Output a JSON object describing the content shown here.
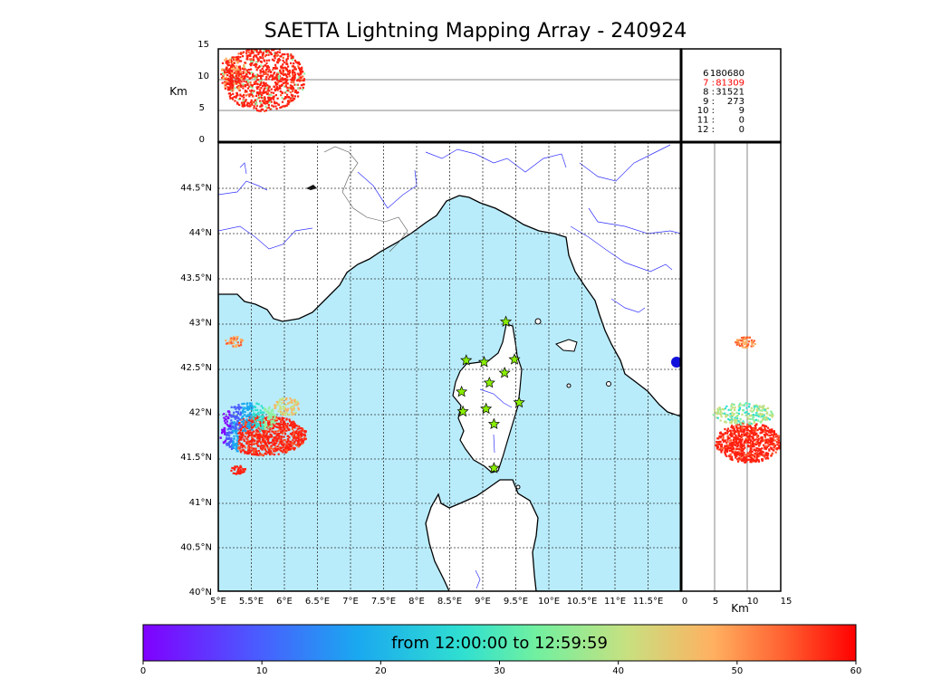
{
  "title": "SAETTA Lightning Mapping Array - 240924",
  "alt_panel": {
    "ylabel": "Km",
    "y_ticks": [
      "15",
      "10",
      "5",
      "0"
    ]
  },
  "side_panel": {
    "xlabel": "Km",
    "x_ticks": [
      "0",
      "5",
      "10",
      "15"
    ]
  },
  "map": {
    "lat_ticks": [
      "44.5°N",
      "44°N",
      "43.5°N",
      "43°N",
      "42.5°N",
      "42°N",
      "41.5°N",
      "41°N",
      "40.5°N",
      "40°N"
    ],
    "lon_ticks": [
      "5°E",
      "5.5°E",
      "6°E",
      "6.5°E",
      "7°E",
      "7.5°E",
      "8°E",
      "8.5°E",
      "9°E",
      "9.5°E",
      "10°E",
      "10.5°E",
      "11°E",
      "11.5°E"
    ],
    "lat_range": [
      40,
      45
    ],
    "lon_range": [
      5,
      12
    ],
    "sea_color": "#b9ecfb",
    "land_color": "#ffffff",
    "river_color": "#3333ff",
    "station_color": "#88ee00",
    "stations": [
      [
        9.35,
        43.0
      ],
      [
        8.75,
        42.57
      ],
      [
        9.02,
        42.55
      ],
      [
        9.48,
        42.58
      ],
      [
        9.33,
        42.43
      ],
      [
        9.1,
        42.32
      ],
      [
        8.68,
        42.22
      ],
      [
        9.55,
        42.1
      ],
      [
        9.05,
        42.03
      ],
      [
        8.7,
        42.0
      ],
      [
        9.17,
        41.86
      ],
      [
        9.17,
        41.37
      ]
    ]
  },
  "station_counts": [
    {
      "label": "6  :",
      "value": "180680",
      "color": "#000000"
    },
    {
      "label": "7  :",
      "value": "81309",
      "color": "#ff0000"
    },
    {
      "label": "8  :",
      "value": "31521",
      "color": "#000000"
    },
    {
      "label": "9  :",
      "value": "273",
      "color": "#000000"
    },
    {
      "label": "10  :",
      "value": "9",
      "color": "#000000"
    },
    {
      "label": "11  :",
      "value": "0",
      "color": "#000000"
    },
    {
      "label": "12  :",
      "value": "0",
      "color": "#000000"
    }
  ],
  "colorbar": {
    "label": "from 12:00:00 to 12:59:59",
    "ticks": [
      "0",
      "10",
      "20",
      "30",
      "40",
      "50",
      "60"
    ],
    "range": [
      0,
      60
    ],
    "colormap": "rainbow"
  }
}
